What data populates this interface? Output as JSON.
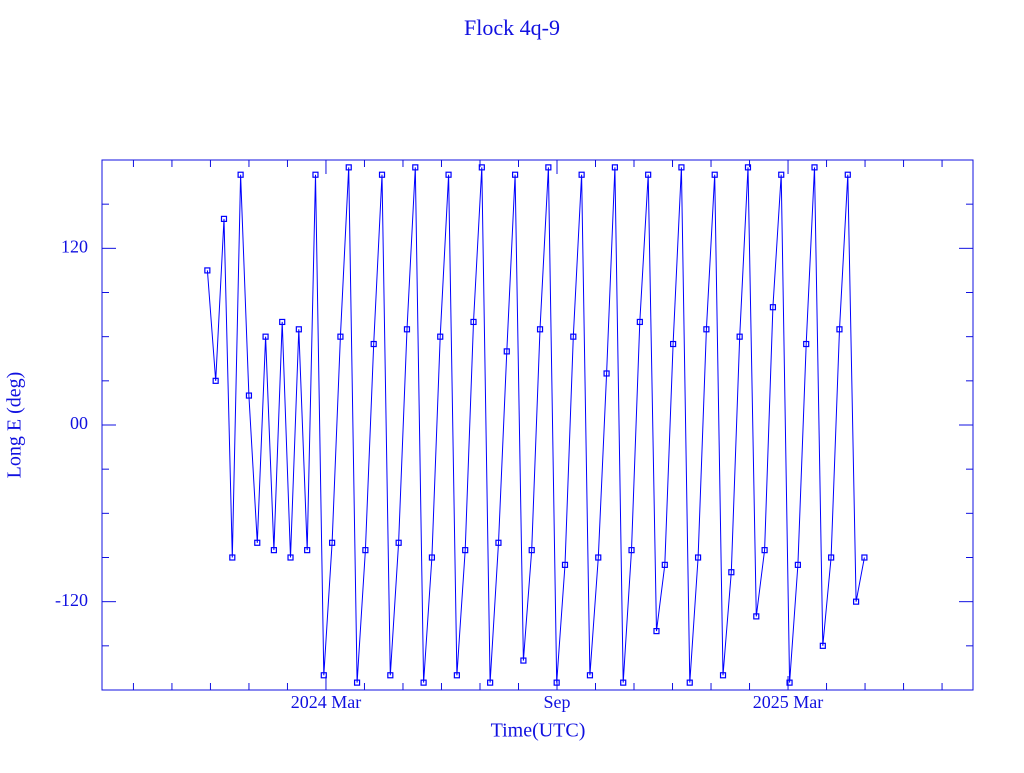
{
  "chart_data": {
    "type": "line",
    "title": "Flock 4q-9",
    "x_label": "Time(UTC)",
    "y_label": "Long E (deg)",
    "xlim": [
      2023.682,
      2025.567
    ],
    "xticks": [
      {
        "value": 2024.1667,
        "label": "2024 Mar"
      },
      {
        "value": 2024.6667,
        "label": "Sep"
      },
      {
        "value": 2025.1667,
        "label": "2025 Mar"
      }
    ],
    "ylim": [
      -180,
      180
    ],
    "yticks": [
      -120,
      {
        "value": 0,
        "label": "00"
      },
      120
    ],
    "series": [
      {
        "color": "#0000ff",
        "x": [
          2023.91,
          2023.928,
          2023.946,
          2023.964,
          2023.982,
          2024.0,
          2024.018,
          2024.036,
          2024.054,
          2024.072,
          2024.09,
          2024.108,
          2024.126,
          2024.144,
          2024.162,
          2024.18,
          2024.198,
          2024.216,
          2024.234,
          2024.252,
          2024.27,
          2024.288,
          2024.306,
          2024.324,
          2024.342,
          2024.36,
          2024.378,
          2024.396,
          2024.414,
          2024.432,
          2024.45,
          2024.468,
          2024.486,
          2024.504,
          2024.522,
          2024.54,
          2024.558,
          2024.576,
          2024.594,
          2024.612,
          2024.63,
          2024.648,
          2024.666,
          2024.684,
          2024.702,
          2024.72,
          2024.738,
          2024.756,
          2024.774,
          2024.792,
          2024.81,
          2024.828,
          2024.846,
          2024.864,
          2024.882,
          2024.9,
          2024.918,
          2024.936,
          2024.954,
          2024.972,
          2024.99,
          2025.008,
          2025.026,
          2025.044,
          2025.062,
          2025.08,
          2025.098,
          2025.116,
          2025.134,
          2025.152,
          2025.17,
          2025.188,
          2025.206,
          2025.224,
          2025.242,
          2025.26,
          2025.278,
          2025.296,
          2025.314,
          2025.332
        ],
        "values": [
          105,
          30,
          140,
          -90,
          170,
          20,
          -80,
          60,
          -85,
          70,
          -90,
          65,
          -85,
          170,
          -170,
          -80,
          60,
          175,
          -175,
          -85,
          55,
          170,
          -170,
          -80,
          65,
          175,
          -175,
          -90,
          60,
          170,
          -170,
          -85,
          70,
          175,
          -175,
          -80,
          50,
          170,
          -160,
          -85,
          65,
          175,
          -175,
          -95,
          60,
          170,
          -170,
          -90,
          35,
          175,
          -175,
          -85,
          70,
          170,
          -140,
          -95,
          55,
          175,
          -175,
          -90,
          65,
          170,
          -170,
          -100,
          60,
          175,
          -130,
          -85,
          80,
          170,
          -175,
          -95,
          55,
          175,
          -150,
          -90,
          65,
          170,
          -120,
          -90
        ]
      }
    ]
  }
}
